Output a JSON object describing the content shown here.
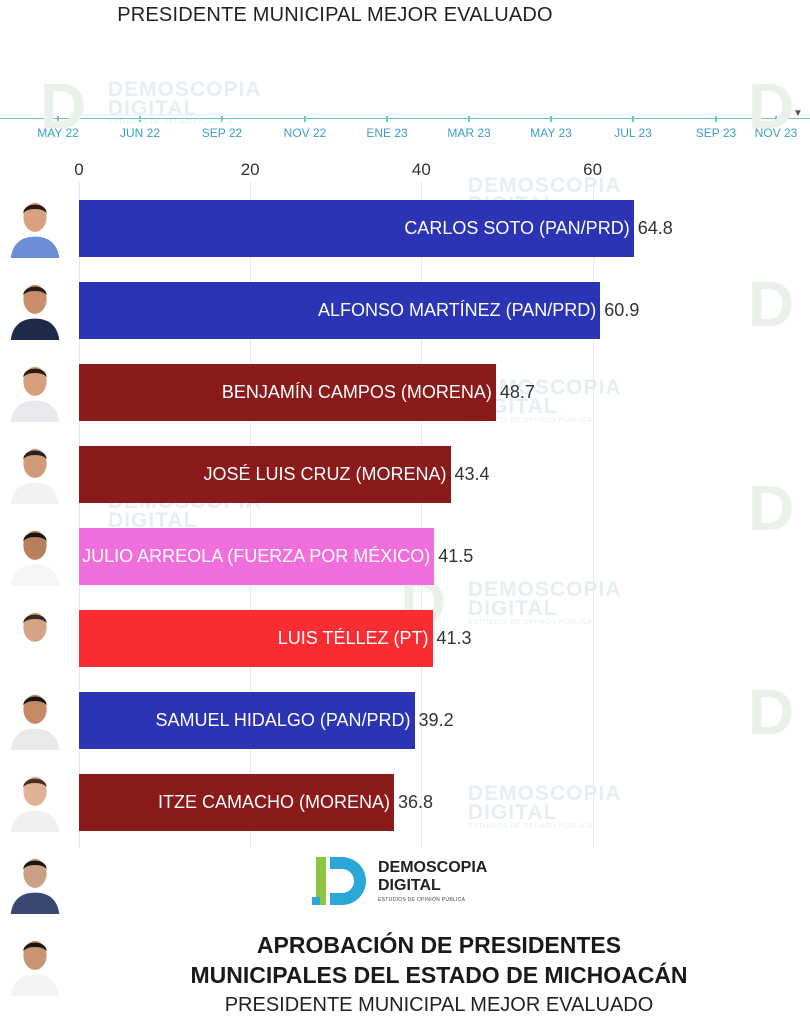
{
  "header": {
    "title": "PRESIDENTE MUNICIPAL MEJOR EVALUADO"
  },
  "timeline": {
    "labels": [
      "MAY 22",
      "JUN 22",
      "SEP 22",
      "NOV 22",
      "ENE 23",
      "MAR 23",
      "MAY 23",
      "JUL 23",
      "SEP 23",
      "NOV 23"
    ]
  },
  "watermark": {
    "line1": "DEMOSCOPIA",
    "line2": "DIGITAL",
    "line3": "ESTUDIOS DE OPINIÓN PÚBLICA"
  },
  "logo": {
    "line1": "DEMOSCOPIA",
    "line2": "DIGITAL",
    "tagline": "ESTUDIOS DE OPINIÓN PÚBLICA"
  },
  "footer": {
    "title_line1": "APROBACIÓN DE PRESIDENTES",
    "title_line2": "MUNICIPALES DEL ESTADO DE MICHOACÁN",
    "subtitle": "PRESIDENTE MUNICIPAL MEJOR EVALUADO"
  },
  "colors": {
    "pan_prd": "#2b34b4",
    "morena": "#8b1a1a",
    "fuerza_por_mexico": "#f16fdd",
    "pt": "#fb2d33",
    "timeline": "#6cc3d1"
  },
  "chart_data": {
    "type": "bar",
    "orientation": "horizontal",
    "xlim": [
      0,
      70
    ],
    "ticks": [
      0,
      20,
      40,
      60
    ],
    "grid": true,
    "categories": [
      "CARLOS SOTO (PAN/PRD)",
      "ALFONSO MARTÍNEZ (PAN/PRD)",
      "BENJAMÍN CAMPOS (MORENA)",
      "JOSÉ LUIS CRUZ (MORENA)",
      "JULIO ARREOLA (FUERZA POR MÉXICO)",
      "LUIS TÉLLEZ (PT)",
      "SAMUEL HIDALGO (PAN/PRD)",
      "ITZE CAMACHO (MORENA)"
    ],
    "values": [
      64.8,
      60.9,
      48.7,
      43.4,
      41.5,
      41.3,
      39.2,
      36.8
    ],
    "value_labels": [
      "64.8",
      "60.9",
      "48.7",
      "43.4",
      "41.5",
      "41.3",
      "39.2",
      "36.8"
    ],
    "bar_colors": [
      "#2b34b4",
      "#2b34b4",
      "#8b1a1a",
      "#8b1a1a",
      "#f16fdd",
      "#fb2d33",
      "#2b34b4",
      "#8b1a1a"
    ]
  }
}
